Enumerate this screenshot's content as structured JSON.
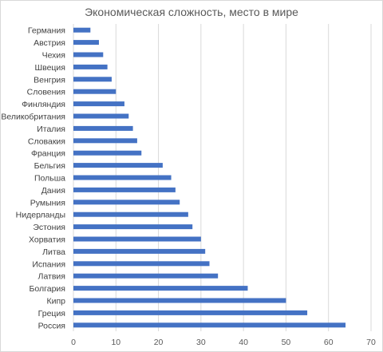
{
  "chart_data": {
    "type": "bar",
    "orientation": "horizontal",
    "title": "Экономическая сложность, место в мире",
    "xlabel": "",
    "ylabel": "",
    "xlim": [
      0,
      70
    ],
    "x_ticks": [
      "0",
      "10",
      "20",
      "30",
      "40",
      "50",
      "60",
      "70"
    ],
    "grid": "vertical",
    "legend": "none",
    "bar_color": "#4472c4",
    "categories": [
      "Германия",
      "Австрия",
      "Чехия",
      "Швеция",
      "Венгрия",
      "Словения",
      "Финляндия",
      "Великобритания",
      "Италия",
      "Словакия",
      "Франция",
      "Бельгия",
      "Польша",
      "Дания",
      "Румыния",
      "Нидерланды",
      "Эстония",
      "Хорватия",
      "Литва",
      "Испания",
      "Латвия",
      "Болгария",
      "Кипр",
      "Греция",
      "Россия"
    ],
    "values": [
      4,
      6,
      7,
      8,
      9,
      10,
      12,
      13,
      14,
      15,
      16,
      21,
      23,
      24,
      25,
      27,
      28,
      30,
      31,
      32,
      34,
      41,
      50,
      55,
      64
    ]
  }
}
